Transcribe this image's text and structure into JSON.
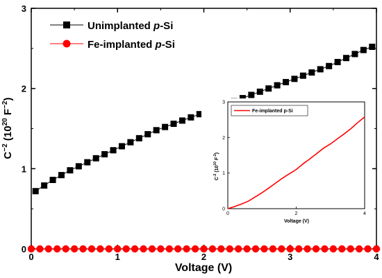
{
  "chart_data": [
    {
      "type": "scatter",
      "xlabel": "Voltage (V)",
      "ylabel": {
        "base": "C",
        "base_sup": "−2",
        "mid": " (10",
        "mid_sup": "20",
        "unit": " F",
        "unit_sup": "−2",
        "end": ")"
      },
      "xlim": [
        0,
        4
      ],
      "ylim": [
        0,
        3
      ],
      "x_ticks": [
        "0",
        "1",
        "2",
        "3",
        "4"
      ],
      "y_ticks": [
        "0",
        "1",
        "2",
        "3"
      ],
      "legend_position": "top-left",
      "series": [
        {
          "name": "Unimplanted p-Si",
          "name_parts": {
            "text": "Unimplanted ",
            "italic": "p",
            "rest": "-Si"
          },
          "marker": "square",
          "color": "#000000",
          "x": [
            0.05,
            0.15,
            0.25,
            0.35,
            0.45,
            0.55,
            0.65,
            0.75,
            0.85,
            0.95,
            1.05,
            1.15,
            1.25,
            1.35,
            1.45,
            1.55,
            1.65,
            1.75,
            1.85,
            1.95,
            2.05,
            2.15,
            2.25,
            2.35,
            2.45,
            2.55,
            2.65,
            2.75,
            2.85,
            2.95,
            3.05,
            3.15,
            3.25,
            3.35,
            3.45,
            3.55,
            3.65,
            3.75,
            3.85,
            3.95
          ],
          "y": [
            0.72,
            0.79,
            0.86,
            0.92,
            0.98,
            1.03,
            1.08,
            1.13,
            1.18,
            1.23,
            1.28,
            1.33,
            1.38,
            1.43,
            1.48,
            1.52,
            1.56,
            1.6,
            1.64,
            1.68,
            1.72,
            1.76,
            1.8,
            1.84,
            1.88,
            1.92,
            1.96,
            2.0,
            2.04,
            2.08,
            2.12,
            2.16,
            2.2,
            2.24,
            2.28,
            2.33,
            2.38,
            2.43,
            2.48,
            2.52
          ]
        },
        {
          "name": "Fe-implanted p-Si",
          "name_parts": {
            "text": "Fe-implanted ",
            "italic": "p",
            "rest": "-Si"
          },
          "marker": "circle",
          "color": "#ff0000",
          "x": [
            0.0,
            0.1,
            0.2,
            0.3,
            0.4,
            0.5,
            0.6,
            0.7,
            0.8,
            0.9,
            1.0,
            1.1,
            1.2,
            1.3,
            1.4,
            1.5,
            1.6,
            1.7,
            1.8,
            1.9,
            2.0,
            2.1,
            2.2,
            2.3,
            2.4,
            2.5,
            2.6,
            2.7,
            2.8,
            2.9,
            3.0,
            3.1,
            3.2,
            3.3,
            3.4,
            3.5,
            3.6,
            3.7,
            3.8,
            3.9,
            4.0
          ],
          "y": [
            0.0,
            0.0,
            0.0,
            0.0,
            0.0,
            0.0,
            0.0,
            0.0,
            0.0,
            0.0,
            0.0,
            0.0,
            0.0,
            0.0,
            0.0,
            0.0,
            0.0,
            0.0,
            0.0,
            0.0,
            0.0,
            0.0,
            0.0,
            0.0,
            0.0,
            0.0,
            0.0,
            0.0,
            0.0,
            0.0,
            0.0,
            0.0,
            0.0,
            0.0,
            0.0,
            0.0,
            0.0,
            0.0,
            0.0,
            0.0,
            0.0
          ]
        }
      ]
    },
    {
      "type": "line",
      "inset": true,
      "xlabel": "Voltage (V)",
      "ylabel": {
        "base": "C",
        "base_sup": "-2",
        "mid": " (10",
        "mid_sup": "10",
        "unit": " F",
        "unit_sup": "-2",
        "end": ")"
      },
      "xlim": [
        0,
        4
      ],
      "ylim": [
        0,
        3
      ],
      "x_ticks": [
        "0",
        "2",
        "4"
      ],
      "y_ticks": [
        "0",
        "1",
        "2",
        "3"
      ],
      "legend_position": "top-left",
      "series": [
        {
          "name": "Fe-implanted p-Si",
          "color": "#ff0000",
          "x": [
            0.0,
            0.2,
            0.4,
            0.6,
            0.8,
            1.0,
            1.2,
            1.4,
            1.6,
            1.8,
            2.0,
            2.2,
            2.4,
            2.6,
            2.8,
            3.0,
            3.2,
            3.4,
            3.6,
            3.8,
            4.0
          ],
          "y": [
            0.0,
            0.06,
            0.13,
            0.21,
            0.33,
            0.45,
            0.58,
            0.72,
            0.86,
            0.98,
            1.1,
            1.26,
            1.4,
            1.55,
            1.7,
            1.82,
            1.96,
            2.1,
            2.25,
            2.42,
            2.58
          ]
        }
      ]
    }
  ]
}
